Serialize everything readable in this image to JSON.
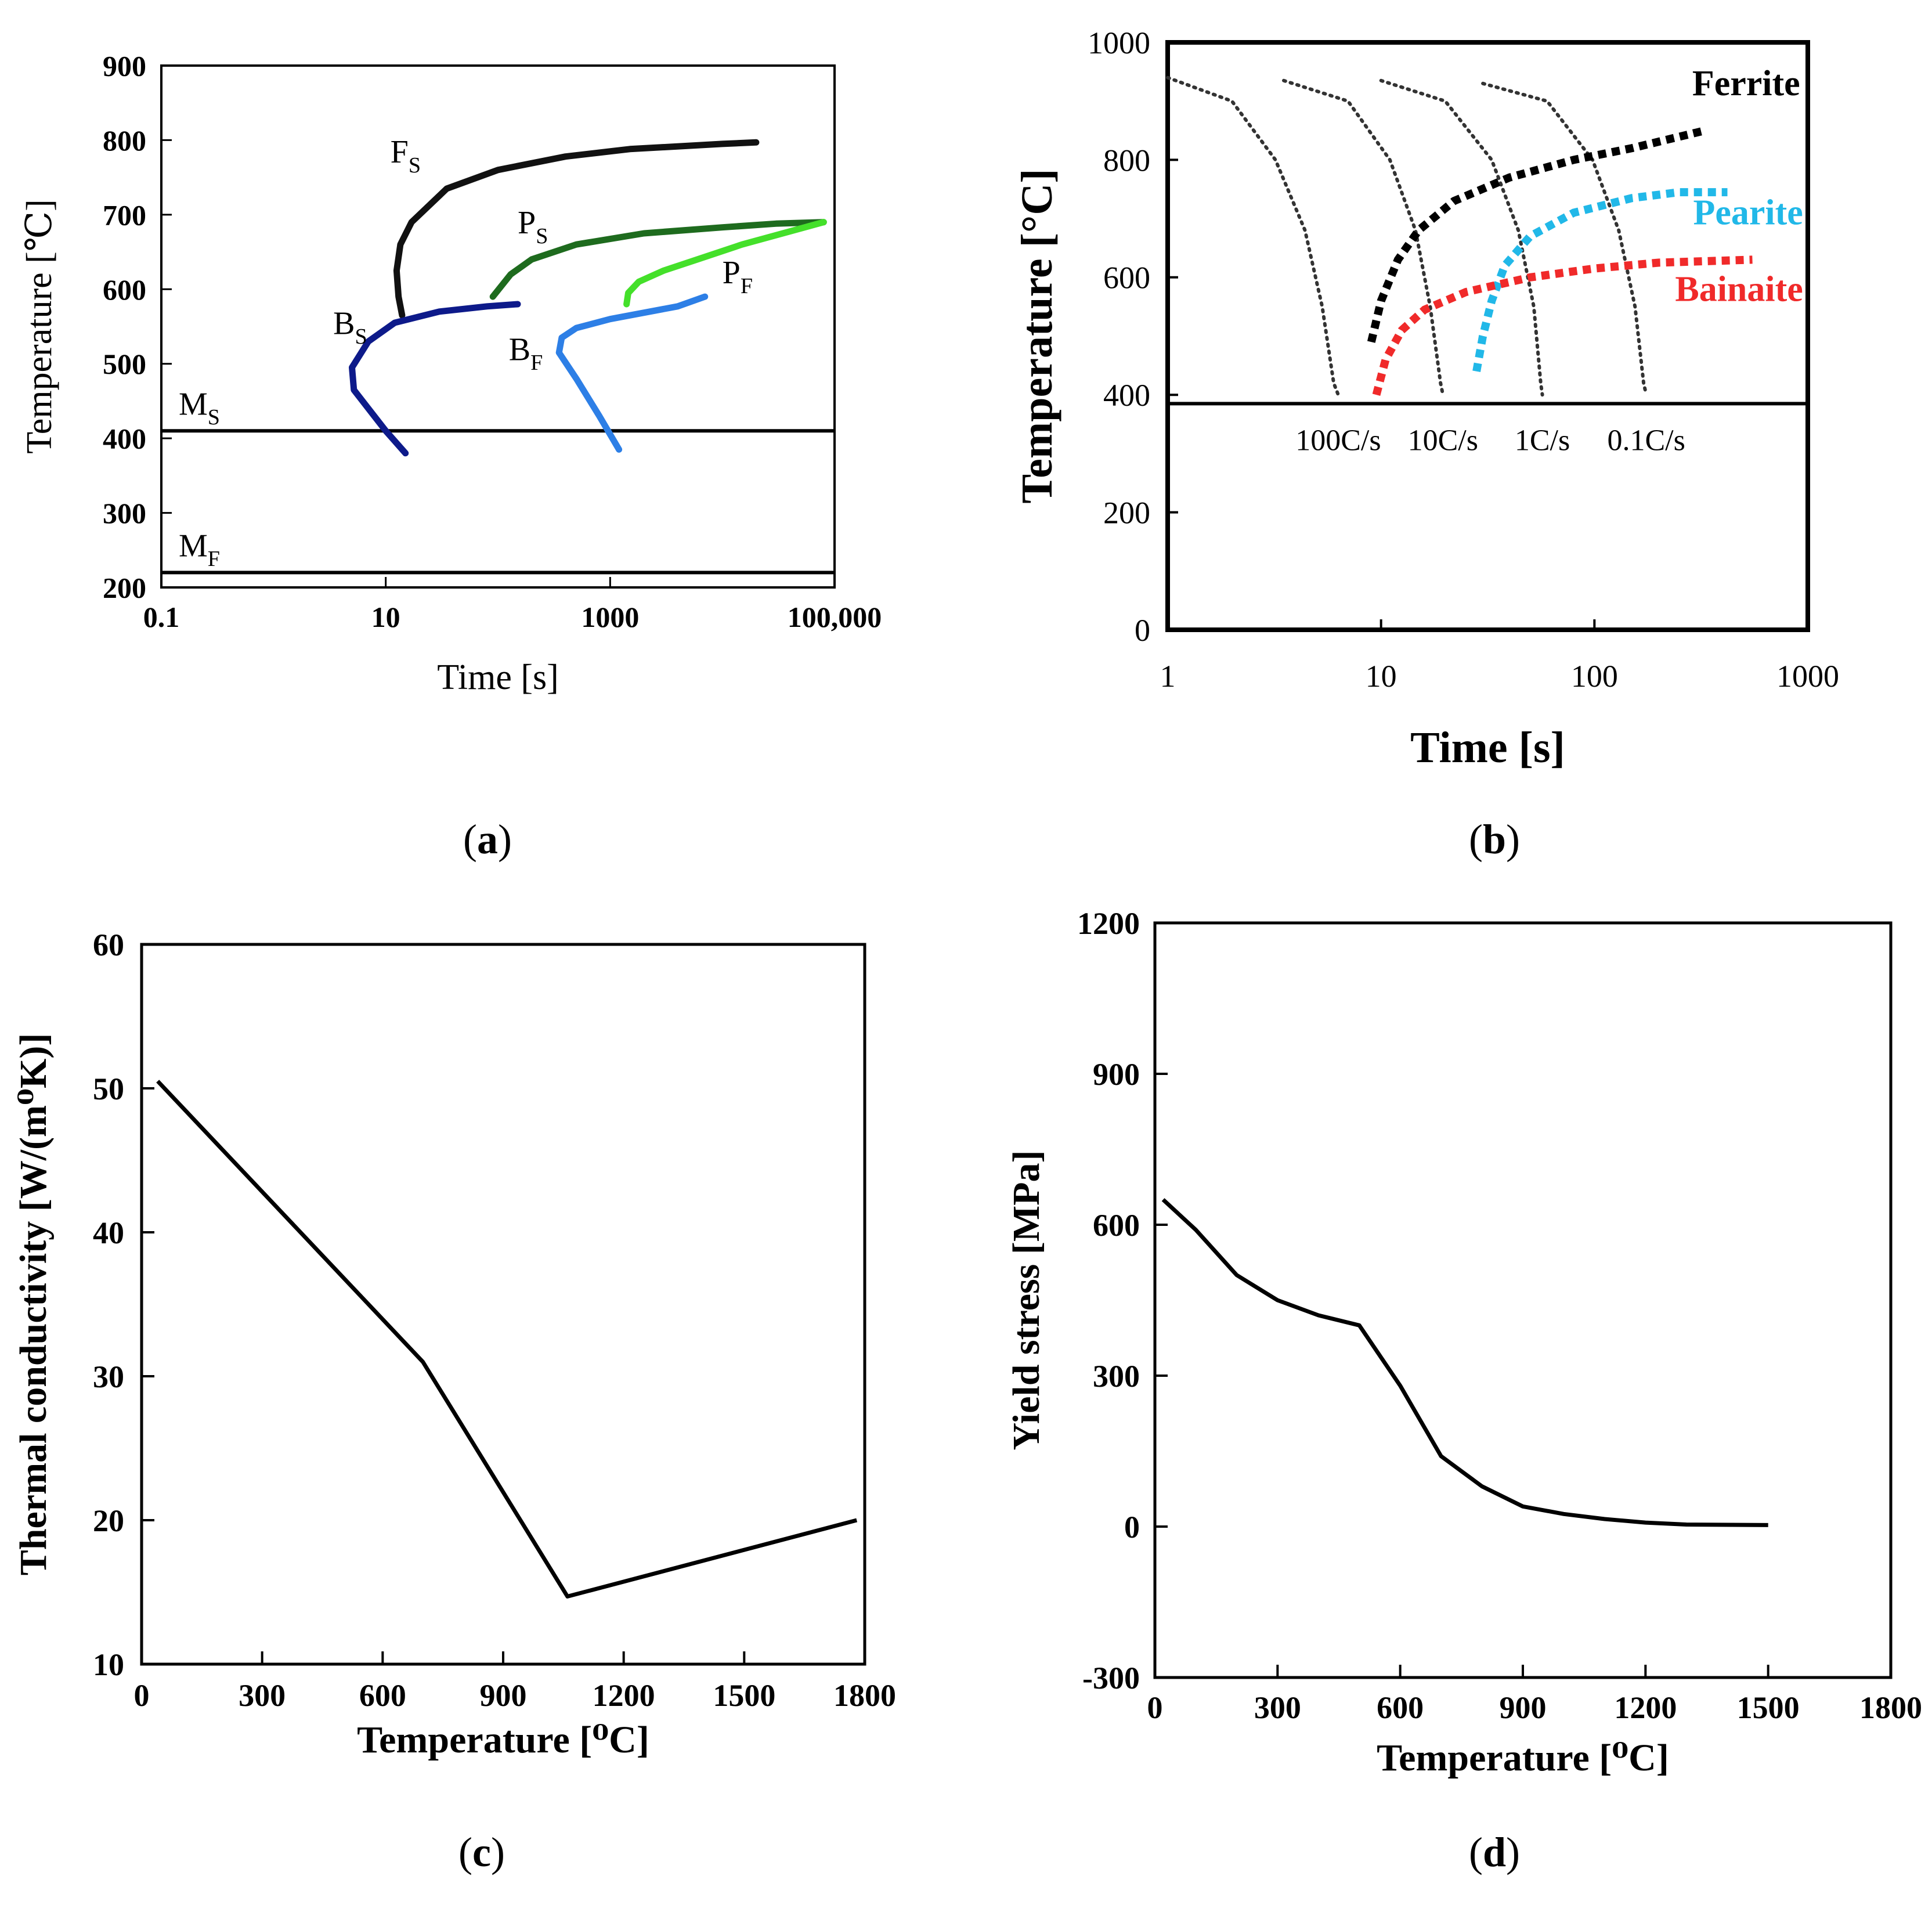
{
  "captions": {
    "a": "a",
    "b": "b",
    "c": "c",
    "d": "d"
  },
  "colors": {
    "ferrite_start": "#111111",
    "pearlite_start": "#1e6b1e",
    "pearlite_finish": "#44e02a",
    "bainite_start": "#0d1a8a",
    "bainite_finish": "#2d7fe6",
    "ferrite_b": "#000000",
    "pearlite_b": "#21b8e8",
    "bainite_b": "#f02a2a",
    "cooling_curve": "#333333"
  },
  "chart_data": [
    {
      "id": "a",
      "type": "line",
      "xscale": "log",
      "xlim": [
        0.1,
        100000
      ],
      "ylim": [
        200,
        900
      ],
      "xlabel": "Time [s]",
      "ylabel": "Temperature [℃]",
      "xticks": [
        {
          "value": 0.1,
          "label": "0.1"
        },
        {
          "value": 10,
          "label": "10"
        },
        {
          "value": 1000,
          "label": "1000"
        },
        {
          "value": 100000,
          "label": "100,000"
        }
      ],
      "yticks": [
        200,
        300,
        400,
        500,
        600,
        700,
        800,
        900
      ],
      "hlines": [
        {
          "y": 410,
          "label": "M",
          "sub": "S"
        },
        {
          "y": 220,
          "label": "M",
          "sub": "F"
        }
      ],
      "series": [
        {
          "key": "ferrite_start",
          "label": "F",
          "sub": "S",
          "label_at": [
            11,
            770
          ],
          "colorKey": "ferrite_start",
          "points": [
            [
              14,
              565
            ],
            [
              13,
              590
            ],
            [
              12.5,
              625
            ],
            [
              13.5,
              660
            ],
            [
              17,
              690
            ],
            [
              35,
              735
            ],
            [
              100,
              760
            ],
            [
              400,
              778
            ],
            [
              1500,
              788
            ],
            [
              10000,
              795
            ],
            [
              20000,
              797
            ]
          ]
        },
        {
          "key": "pearlite_start",
          "label": "P",
          "sub": "S",
          "label_at": [
            150,
            675
          ],
          "colorKey": "pearlite_start",
          "points": [
            [
              90,
              590
            ],
            [
              130,
              620
            ],
            [
              200,
              640
            ],
            [
              500,
              660
            ],
            [
              2000,
              675
            ],
            [
              10000,
              683
            ],
            [
              30000,
              688
            ],
            [
              80000,
              690
            ]
          ]
        },
        {
          "key": "pearlite_finish",
          "label": "P",
          "sub": "F",
          "label_at": [
            10000,
            608
          ],
          "colorKey": "pearlite_finish",
          "points": [
            [
              80000,
              690
            ],
            [
              15000,
              660
            ],
            [
              6000,
              640
            ],
            [
              3000,
              625
            ],
            [
              1800,
              610
            ],
            [
              1450,
              595
            ],
            [
              1400,
              580
            ]
          ]
        },
        {
          "key": "bainite_start",
          "label": "B",
          "sub": "S",
          "label_at": [
            3.4,
            540
          ],
          "colorKey": "bainite_start",
          "points": [
            [
              15,
              380
            ],
            [
              10,
              410
            ],
            [
              7,
              440
            ],
            [
              5.2,
              465
            ],
            [
              5,
              495
            ],
            [
              7,
              530
            ],
            [
              12,
              555
            ],
            [
              30,
              570
            ],
            [
              80,
              577
            ],
            [
              150,
              580
            ]
          ]
        },
        {
          "key": "bainite_finish",
          "label": "B",
          "sub": "F",
          "label_at": [
            125,
            505
          ],
          "colorKey": "bainite_finish",
          "points": [
            [
              1200,
              385
            ],
            [
              800,
              430
            ],
            [
              500,
              480
            ],
            [
              350,
              515
            ],
            [
              370,
              535
            ],
            [
              500,
              548
            ],
            [
              1000,
              560
            ],
            [
              4000,
              577
            ],
            [
              7000,
              590
            ]
          ]
        }
      ]
    },
    {
      "id": "b",
      "type": "line",
      "xscale": "log",
      "xlim": [
        1,
        1000
      ],
      "ylim": [
        0,
        1000
      ],
      "xlabel": "Time [s]",
      "ylabel": "Temperature [°C]",
      "xticks": [
        {
          "value": 1,
          "label": "1"
        },
        {
          "value": 10,
          "label": "10"
        },
        {
          "value": 100,
          "label": "100"
        },
        {
          "value": 1000,
          "label": "1000"
        }
      ],
      "yticks": [
        0,
        200,
        400,
        600,
        800,
        1000
      ],
      "hlines": [
        {
          "y": 385
        }
      ],
      "cooling_rates": [
        {
          "label": "100C/s",
          "points": [
            [
              1.0,
              940
            ],
            [
              2.0,
              900
            ],
            [
              3.2,
              800
            ],
            [
              4.4,
              680
            ],
            [
              5.3,
              550
            ],
            [
              6.0,
              420
            ],
            [
              6.3,
              400
            ]
          ]
        },
        {
          "label": "10C/s",
          "points": [
            [
              3.5,
              935
            ],
            [
              7.0,
              900
            ],
            [
              11.0,
              800
            ],
            [
              14.5,
              680
            ],
            [
              17.0,
              550
            ],
            [
              19.0,
              420
            ],
            [
              19.5,
              400
            ]
          ]
        },
        {
          "label": "1C/s",
          "points": [
            [
              10.0,
              935
            ],
            [
              20.0,
              900
            ],
            [
              33.0,
              800
            ],
            [
              44.0,
              680
            ],
            [
              52.0,
              550
            ],
            [
              56.0,
              420
            ],
            [
              57.0,
              400
            ]
          ]
        },
        {
          "label": "0.1C/s",
          "points": [
            [
              30.0,
              930
            ],
            [
              60.0,
              900
            ],
            [
              98.0,
              800
            ],
            [
              130.0,
              680
            ],
            [
              155.0,
              550
            ],
            [
              170.0,
              420
            ],
            [
              175.0,
              400
            ]
          ]
        }
      ],
      "series": [
        {
          "name": "Ferrite",
          "colorKey": "ferrite_b",
          "label_at": [
            920,
            910
          ],
          "points": [
            [
              9,
              490
            ],
            [
              10,
              560
            ],
            [
              12,
              630
            ],
            [
              15,
              680
            ],
            [
              22,
              730
            ],
            [
              40,
              770
            ],
            [
              80,
              800
            ],
            [
              150,
              820
            ],
            [
              330,
              850
            ]
          ]
        },
        {
          "name": "Pearite",
          "colorKey": "pearlite_b",
          "label_at": [
            950,
            690
          ],
          "points": [
            [
              28,
              440
            ],
            [
              30,
              500
            ],
            [
              33,
              560
            ],
            [
              38,
              620
            ],
            [
              50,
              670
            ],
            [
              80,
              710
            ],
            [
              150,
              735
            ],
            [
              250,
              745
            ],
            [
              420,
              745
            ]
          ]
        },
        {
          "name": "Bainaite",
          "colorKey": "bainite_b",
          "label_at": [
            950,
            560
          ],
          "points": [
            [
              9.5,
              400
            ],
            [
              10.5,
              460
            ],
            [
              12.5,
              510
            ],
            [
              16,
              545
            ],
            [
              25,
              575
            ],
            [
              50,
              600
            ],
            [
              100,
              615
            ],
            [
              200,
              625
            ],
            [
              550,
              630
            ]
          ]
        }
      ]
    },
    {
      "id": "c",
      "type": "line",
      "xlim": [
        0,
        1800
      ],
      "ylim": [
        10,
        60
      ],
      "xlabel": "Temperature [⁰C]",
      "ylabel": "Thermal conductivity [W/(m⁰K)]",
      "xticks": [
        0,
        300,
        600,
        900,
        1200,
        1500,
        1800
      ],
      "yticks": [
        10,
        20,
        30,
        40,
        50,
        60
      ],
      "series": [
        {
          "points": [
            [
              40,
              50.5
            ],
            [
              700,
              31
            ],
            [
              1060,
              14.7
            ],
            [
              1780,
              20
            ]
          ]
        }
      ]
    },
    {
      "id": "d",
      "type": "line",
      "xlim": [
        0,
        1800
      ],
      "ylim": [
        -300,
        1200
      ],
      "xlabel": "Temperature [⁰C]",
      "ylabel": "Yield stress [MPa]",
      "xticks": [
        0,
        300,
        600,
        900,
        1200,
        1500,
        1800
      ],
      "yticks": [
        -300,
        0,
        300,
        600,
        900,
        1200
      ],
      "series": [
        {
          "points": [
            [
              20,
              650
            ],
            [
              100,
              590
            ],
            [
              200,
              500
            ],
            [
              300,
              450
            ],
            [
              400,
              420
            ],
            [
              500,
              400
            ],
            [
              600,
              280
            ],
            [
              700,
              140
            ],
            [
              800,
              80
            ],
            [
              900,
              40
            ],
            [
              1000,
              25
            ],
            [
              1100,
              15
            ],
            [
              1200,
              8
            ],
            [
              1300,
              4
            ],
            [
              1500,
              3
            ]
          ]
        }
      ]
    }
  ]
}
